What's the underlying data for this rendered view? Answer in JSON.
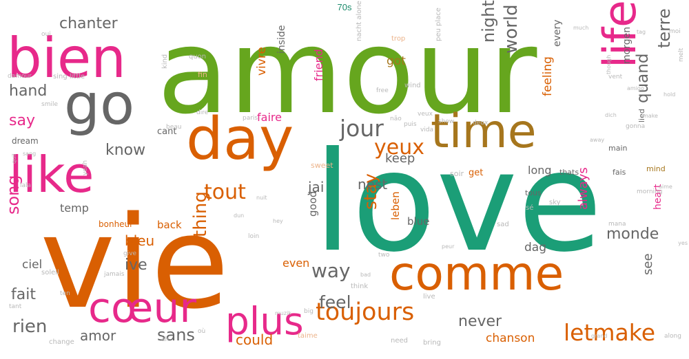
{
  "title": "70s",
  "palette": {
    "green": "#66a61e",
    "teal": "#1b9e77",
    "orange": "#d95f02",
    "pink": "#e7298a",
    "gold": "#a6761d",
    "gray": "#666666",
    "faint_orange": "#ecb38a",
    "faint_pink": "#f2a6cb",
    "faint_gray": "#b8b8b8",
    "faint_teal": "#9ed6c3"
  },
  "words": [
    {
      "text": "amour",
      "color": "green"
    },
    {
      "text": "love",
      "color": "teal"
    },
    {
      "text": "vie",
      "color": "orange"
    },
    {
      "text": "bien",
      "color": "pink"
    },
    {
      "text": "go",
      "color": "gray"
    },
    {
      "text": "day",
      "color": "orange"
    },
    {
      "text": "time",
      "color": "gold"
    },
    {
      "text": "like",
      "color": "pink"
    },
    {
      "text": "life",
      "color": "pink"
    },
    {
      "text": "comme",
      "color": "orange"
    },
    {
      "text": "cœur",
      "color": "pink"
    },
    {
      "text": "plus",
      "color": "pink"
    },
    {
      "text": "toujours",
      "color": "orange"
    },
    {
      "text": "letmake",
      "color": "orange"
    },
    {
      "text": "jour",
      "color": "gray"
    },
    {
      "text": "yeux",
      "color": "orange"
    },
    {
      "text": "tout",
      "color": "orange"
    },
    {
      "text": "world",
      "color": "gray"
    },
    {
      "text": "night",
      "color": "gray"
    },
    {
      "text": "chanter",
      "color": "gray"
    },
    {
      "text": "hand",
      "color": "gray"
    },
    {
      "text": "say",
      "color": "pink"
    },
    {
      "text": "know",
      "color": "gray"
    },
    {
      "text": "terre",
      "color": "gray"
    },
    {
      "text": "quand",
      "color": "gray"
    },
    {
      "text": "song",
      "color": "pink"
    },
    {
      "text": "fait",
      "color": "gray"
    },
    {
      "text": "rien",
      "color": "gray"
    },
    {
      "text": "sans",
      "color": "gray"
    },
    {
      "text": "amor",
      "color": "gray"
    },
    {
      "text": "never",
      "color": "gray"
    },
    {
      "text": "feel",
      "color": "gray"
    },
    {
      "text": "way",
      "color": "gray"
    },
    {
      "text": "monde",
      "color": "gray"
    },
    {
      "text": "thing",
      "color": "orange"
    },
    {
      "text": "stay",
      "color": "orange"
    },
    {
      "text": "nest",
      "color": "gray"
    },
    {
      "text": "jai",
      "color": "gray"
    },
    {
      "text": "ive",
      "color": "gray"
    },
    {
      "text": "bleu",
      "color": "orange"
    },
    {
      "text": "keep",
      "color": "gray"
    },
    {
      "text": "could",
      "color": "orange"
    },
    {
      "text": "chanson",
      "color": "orange"
    },
    {
      "text": "see",
      "color": "gray"
    },
    {
      "text": "always",
      "color": "pink"
    },
    {
      "text": "feeling",
      "color": "orange"
    },
    {
      "text": "vivre",
      "color": "orange"
    },
    {
      "text": "faire",
      "color": "pink"
    },
    {
      "text": "friend",
      "color": "pink"
    },
    {
      "text": "got",
      "color": "gold"
    },
    {
      "text": "long",
      "color": "gray"
    },
    {
      "text": "good",
      "color": "gray"
    },
    {
      "text": "blue",
      "color": "gray"
    },
    {
      "text": "leben",
      "color": "orange"
    },
    {
      "text": "even",
      "color": "orange"
    },
    {
      "text": "dag",
      "color": "gray"
    },
    {
      "text": "ciel",
      "color": "gray"
    },
    {
      "text": "temp",
      "color": "gray"
    },
    {
      "text": "back",
      "color": "orange"
    },
    {
      "text": "heart",
      "color": "pink"
    },
    {
      "text": "inside",
      "color": "gray"
    },
    {
      "text": "every",
      "color": "gray"
    },
    {
      "text": "morgen",
      "color": "gray"
    },
    {
      "text": "lied",
      "color": "gray"
    },
    {
      "text": "mind",
      "color": "gold"
    },
    {
      "text": "fais",
      "color": "gray"
    },
    {
      "text": "main",
      "color": "gray"
    },
    {
      "text": "get",
      "color": "orange"
    },
    {
      "text": "thats",
      "color": "gray"
    },
    {
      "text": "tous",
      "color": "gray"
    },
    {
      "text": "cant",
      "color": "gray"
    },
    {
      "text": "dream",
      "color": "gray"
    },
    {
      "text": "bonheur",
      "color": "orange"
    },
    {
      "text": "sweet",
      "color": "faint_orange"
    },
    {
      "text": "think",
      "color": "faint_gray"
    },
    {
      "text": "soir",
      "color": "faint_gray"
    },
    {
      "text": "sky",
      "color": "faint_gray"
    },
    {
      "text": "sad",
      "color": "faint_gray"
    },
    {
      "text": "live",
      "color": "faint_gray"
    },
    {
      "text": "need",
      "color": "faint_gray"
    },
    {
      "text": "bring",
      "color": "faint_gray"
    },
    {
      "text": "change",
      "color": "faint_gray"
    },
    {
      "text": "taime",
      "color": "faint_orange"
    },
    {
      "text": "trop",
      "color": "faint_orange"
    },
    {
      "text": "fin",
      "color": "faint_orange"
    },
    {
      "text": "wind",
      "color": "faint_gray"
    },
    {
      "text": "free",
      "color": "faint_gray"
    },
    {
      "text": "quon",
      "color": "faint_gray"
    },
    {
      "text": "paris",
      "color": "faint_gray"
    },
    {
      "text": "dire",
      "color": "faint_gray"
    },
    {
      "text": "veux",
      "color": "faint_gray"
    },
    {
      "text": "puis",
      "color": "faint_gray"
    },
    {
      "text": "show",
      "color": "faint_gray"
    },
    {
      "text": "vida",
      "color": "faint_gray"
    },
    {
      "text": "deux",
      "color": "faint_gray"
    },
    {
      "text": "não",
      "color": "faint_gray"
    },
    {
      "text": "mana",
      "color": "faint_gray"
    },
    {
      "text": "loin",
      "color": "faint_gray"
    },
    {
      "text": "soleil",
      "color": "faint_gray"
    },
    {
      "text": "jamais",
      "color": "faint_gray"
    },
    {
      "text": "give",
      "color": "faint_gray"
    },
    {
      "text": "beau",
      "color": "faint_gray"
    },
    {
      "text": "hey",
      "color": "faint_gray"
    },
    {
      "text": "dun",
      "color": "faint_gray"
    },
    {
      "text": "smile",
      "color": "faint_gray"
    },
    {
      "text": "sing little",
      "color": "faint_gray"
    },
    {
      "text": "damour",
      "color": "faint_gray"
    },
    {
      "text": "oui",
      "color": "faint_gray"
    },
    {
      "text": "yeah",
      "color": "faint_gray"
    },
    {
      "text": "lala",
      "color": "faint_gray"
    },
    {
      "text": "ten",
      "color": "faint_gray"
    },
    {
      "text": "tant",
      "color": "faint_gray"
    },
    {
      "text": "grand",
      "color": "faint_gray"
    },
    {
      "text": "along",
      "color": "faint_gray"
    },
    {
      "text": "gonna",
      "color": "faint_gray"
    },
    {
      "text": "morning",
      "color": "faint_gray"
    },
    {
      "text": "vent",
      "color": "faint_gray"
    },
    {
      "text": "amigo",
      "color": "faint_gray"
    },
    {
      "text": "moi",
      "color": "faint_gray"
    },
    {
      "text": "sé",
      "color": "faint_gray"
    },
    {
      "text": "two",
      "color": "faint_gray"
    },
    {
      "text": "peur",
      "color": "faint_gray"
    },
    {
      "text": "bad",
      "color": "faint_gray"
    },
    {
      "text": "big",
      "color": "faint_gray"
    },
    {
      "text": "où",
      "color": "faint_gray"
    },
    {
      "text": "ah",
      "color": "faint_gray"
    },
    {
      "text": "peu place",
      "color": "faint_gray"
    },
    {
      "text": "nacht alone",
      "color": "faint_gray"
    },
    {
      "text": "kind",
      "color": "faint_gray"
    },
    {
      "text": "quil",
      "color": "faint_gray"
    },
    {
      "text": "muzik",
      "color": "faint_gray"
    },
    {
      "text": "nuit",
      "color": "faint_gray"
    },
    {
      "text": "sang",
      "color": "faint_gray"
    },
    {
      "text": "dich",
      "color": "faint_gray"
    },
    {
      "text": "tag",
      "color": "faint_gray"
    },
    {
      "text": "much",
      "color": "faint_gray"
    },
    {
      "text": "though",
      "color": "faint_gray"
    },
    {
      "text": "melt",
      "color": "faint_gray"
    },
    {
      "text": "hold",
      "color": "faint_gray"
    },
    {
      "text": "make",
      "color": "faint_gray"
    },
    {
      "text": "away",
      "color": "faint_gray"
    },
    {
      "text": "aime",
      "color": "faint_gray"
    },
    {
      "text": "yes",
      "color": "faint_gray"
    }
  ]
}
